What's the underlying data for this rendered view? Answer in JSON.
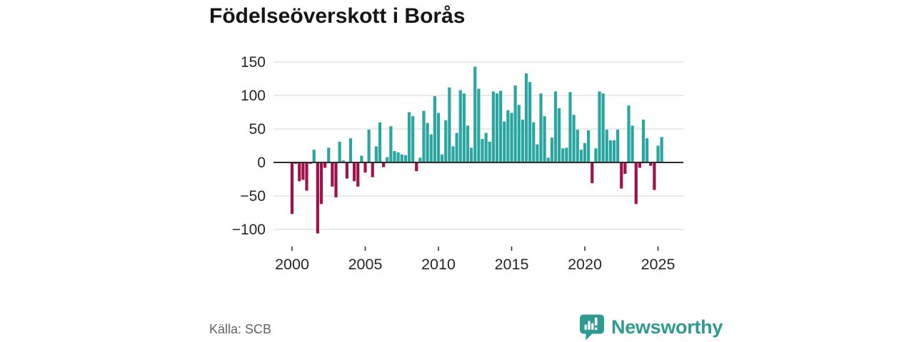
{
  "header": {
    "title": "Födelseöverskott i Borås"
  },
  "footer": {
    "source": "Källa: SCB",
    "brand": "Newsworthy",
    "brand_color": "#2e9a92"
  },
  "chart_data": {
    "type": "bar",
    "title": "Födelseöverskott i Borås",
    "xlabel": "",
    "ylabel": "",
    "frequency": "quarterly",
    "x_start": "2000-Q1",
    "x_end": "2025-Q2",
    "values": [
      -77,
      -2,
      -28,
      -26,
      -42,
      -2,
      19,
      -106,
      -62,
      -8,
      22,
      -36,
      -52,
      31,
      3,
      -24,
      36,
      -28,
      -36,
      10,
      -15,
      49,
      -22,
      24,
      60,
      -7,
      8,
      54,
      17,
      15,
      12,
      11,
      75,
      69,
      -13,
      7,
      77,
      59,
      42,
      99,
      74,
      12,
      63,
      112,
      24,
      44,
      108,
      103,
      55,
      22,
      143,
      110,
      35,
      44,
      31,
      106,
      103,
      107,
      61,
      78,
      74,
      115,
      86,
      64,
      133,
      120,
      60,
      27,
      103,
      69,
      7,
      37,
      106,
      81,
      21,
      22,
      105,
      71,
      49,
      19,
      29,
      48,
      -31,
      21,
      106,
      103,
      49,
      33,
      33,
      49,
      -39,
      -17,
      85,
      55,
      -62,
      -8,
      64,
      36,
      -5,
      -41,
      25,
      38
    ],
    "yticks": [
      150,
      100,
      50,
      0,
      -50,
      -100
    ],
    "xticks": [
      2000,
      2005,
      2010,
      2015,
      2020,
      2025
    ],
    "ylim": [
      -120,
      160
    ],
    "grid": true,
    "legend": false,
    "colors": {
      "positive": "#2aa6a0",
      "negative": "#a0104a",
      "gridline": "#dcdcdc",
      "zeroline": "#2b2b2b",
      "axis_text": "#262626",
      "tick_mark": "#333333"
    }
  }
}
